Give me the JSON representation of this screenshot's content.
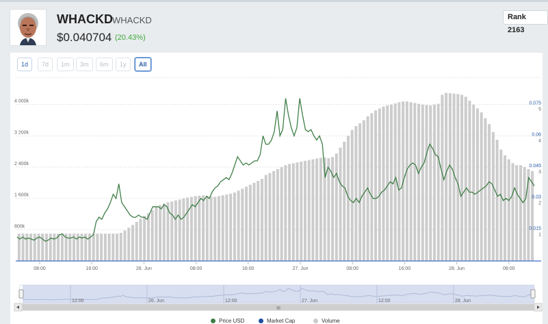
{
  "coin": {
    "name": "WHACKD",
    "symbol": "WHACKD",
    "price": "$0.040704",
    "change": "(20.43%)",
    "rank": "Rank 2163",
    "avatar_icon": "portrait-avatar"
  },
  "range_buttons": [
    "1d",
    "7d",
    "1m",
    "3m",
    "6m",
    "1y",
    "All"
  ],
  "selected_range": "All",
  "legend": [
    {
      "label": "Price USD",
      "color": "#3e7e46"
    },
    {
      "label": "Market Cap",
      "color": "#1f4fa0"
    },
    {
      "label": "Volume",
      "color": "#cccccc"
    }
  ],
  "navigator_labels": [
    "12:00",
    "26. Jun",
    "12:00",
    "27. Jun",
    "12:00",
    "28. Jun"
  ],
  "navigator_scroll_glyph": "III",
  "chart_data": {
    "type": "line",
    "x_tick_labels": [
      "08:00",
      "16:00",
      "26. Jun",
      "08:00",
      "16:00",
      "27. Jun",
      "08:00",
      "16:00",
      "28. Jun",
      "08:00"
    ],
    "volume_axis_ticks": [
      "800k",
      "1 600k",
      "2 400k",
      "3 200k",
      "4 000k"
    ],
    "price_axis_ticks": [
      "0.015",
      "0.03",
      "0.045",
      "0.06",
      "0.075"
    ],
    "marketcap_axis_ticks": [
      "1",
      "2",
      "3",
      "4",
      "5"
    ],
    "volume_range": [
      0,
      4800000
    ],
    "price_range": [
      0.0,
      0.09
    ],
    "series": [
      {
        "name": "Volume",
        "type": "bar",
        "color": "#cccccc",
        "values": [
          700000,
          700000,
          700000,
          700000,
          700000,
          700000,
          700000,
          700000,
          700000,
          700000,
          700000,
          700000,
          700000,
          700000,
          700000,
          700000,
          700000,
          700000,
          700000,
          700000,
          700000,
          700000,
          700000,
          700000,
          700000,
          700000,
          720000,
          780000,
          850000,
          920000,
          1000000,
          1080000,
          1150000,
          1220000,
          1300000,
          1380000,
          1430000,
          1470000,
          1500000,
          1520000,
          1550000,
          1570000,
          1600000,
          1620000,
          1640000,
          1660000,
          1670000,
          1680000,
          1660000,
          1650000,
          1640000,
          1660000,
          1680000,
          1700000,
          1720000,
          1750000,
          1800000,
          1850000,
          1900000,
          1950000,
          2000000,
          2050000,
          2100000,
          2200000,
          2250000,
          2300000,
          2350000,
          2400000,
          2450000,
          2480000,
          2500000,
          2520000,
          2540000,
          2560000,
          2580000,
          2600000,
          2620000,
          2640000,
          2650000,
          2630000,
          2660000,
          2750000,
          2900000,
          3050000,
          3200000,
          3350000,
          3450000,
          3520000,
          3600000,
          3700000,
          3780000,
          3850000,
          3900000,
          3950000,
          3980000,
          4000000,
          4030000,
          4060000,
          4080000,
          4080000,
          4060000,
          4040000,
          4020000,
          4000000,
          3990000,
          3980000,
          4000000,
          4020000,
          4250000,
          4300000,
          4290000,
          4280000,
          4270000,
          4250000,
          4200000,
          4100000,
          4000000,
          3900000,
          3800000,
          3650000,
          3500000,
          3300000,
          3100000,
          2850000,
          2700000,
          2600000,
          2500000,
          2450000,
          2450000,
          2400000,
          2350000,
          2300000
        ]
      },
      {
        "name": "Price USD",
        "type": "line",
        "color": "#3e7e46",
        "values": [
          0.0115,
          0.0105,
          0.0115,
          0.0105,
          0.011,
          0.0105,
          0.01,
          0.011,
          0.0115,
          0.0105,
          0.0095,
          0.01,
          0.011,
          0.0105,
          0.011,
          0.0125,
          0.013,
          0.0115,
          0.011,
          0.011,
          0.0115,
          0.0105,
          0.0115,
          0.011,
          0.0115,
          0.0105,
          0.0115,
          0.0125,
          0.019,
          0.021,
          0.02,
          0.023,
          0.025,
          0.028,
          0.032,
          0.03,
          0.037,
          0.028,
          0.026,
          0.024,
          0.022,
          0.021,
          0.021,
          0.022,
          0.021,
          0.021,
          0.02,
          0.023,
          0.026,
          0.026,
          0.026,
          0.025,
          0.027,
          0.026,
          0.023,
          0.022,
          0.02,
          0.022,
          0.02,
          0.021,
          0.023,
          0.025,
          0.027,
          0.026,
          0.028,
          0.03,
          0.029,
          0.031,
          0.03,
          0.033,
          0.035,
          0.036,
          0.038,
          0.039,
          0.04,
          0.039,
          0.042,
          0.046,
          0.05,
          0.048,
          0.046,
          0.047,
          0.046,
          0.047,
          0.048,
          0.048,
          0.051,
          0.06,
          0.056,
          0.056,
          0.058,
          0.062,
          0.072,
          0.06,
          0.063,
          0.078,
          0.07,
          0.064,
          0.06,
          0.064,
          0.078,
          0.07,
          0.063,
          0.062,
          0.063,
          0.06,
          0.058,
          0.06,
          0.056,
          0.04,
          0.045,
          0.043,
          0.04,
          0.042,
          0.038,
          0.036,
          0.035,
          0.031,
          0.029,
          0.028,
          0.03,
          0.028,
          0.031,
          0.033,
          0.035,
          0.032,
          0.03,
          0.03,
          0.031,
          0.033,
          0.034,
          0.036,
          0.038,
          0.037,
          0.04,
          0.034,
          0.035,
          0.04,
          0.044,
          0.046,
          0.047,
          0.046,
          0.042,
          0.045,
          0.047,
          0.052,
          0.056,
          0.054,
          0.051,
          0.05,
          0.044,
          0.039,
          0.043,
          0.046,
          0.044,
          0.04,
          0.037,
          0.031,
          0.033,
          0.035,
          0.033,
          0.033,
          0.032,
          0.033,
          0.034,
          0.035,
          0.036,
          0.038,
          0.037,
          0.034,
          0.031,
          0.032,
          0.029,
          0.03,
          0.029,
          0.031,
          0.035,
          0.032,
          0.03,
          0.028,
          0.03,
          0.04,
          0.038,
          0.036
        ]
      }
    ],
    "grid": true,
    "legend_position": "bottom-center"
  }
}
